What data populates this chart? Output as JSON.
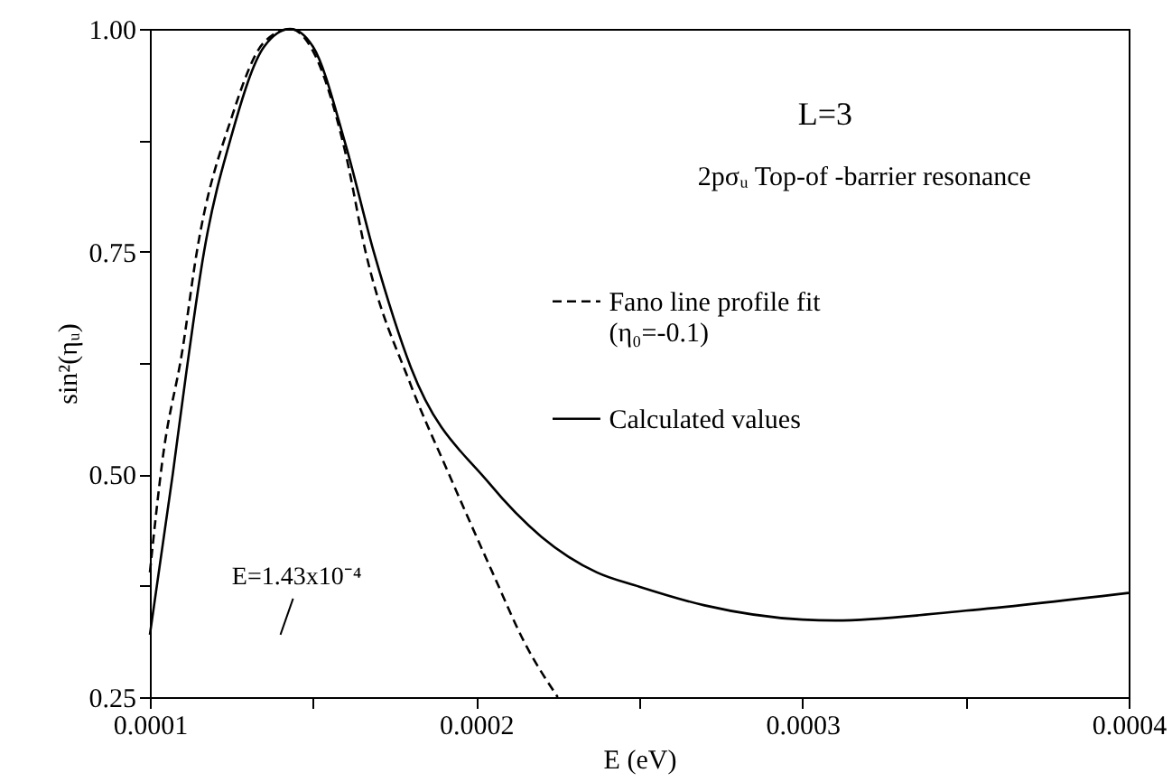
{
  "chart_data": {
    "type": "line",
    "xlabel": "E (eV)",
    "ylabel": "sin²(ηᵤ)",
    "xlim": [
      0.0001,
      0.0004
    ],
    "xticks": [
      0.0001,
      {
        "value": 0.00015,
        "label": null
      },
      0.0002,
      {
        "value": 0.00025,
        "label": null
      },
      0.0003,
      {
        "value": 0.00035,
        "label": null
      },
      0.0004
    ],
    "ylim": [
      0.25,
      1.0
    ],
    "yticks": [
      {
        "value": 0.25,
        "label": "0.25"
      },
      {
        "value": 0.375,
        "label": null
      },
      {
        "value": 0.5,
        "label": "0.50"
      },
      {
        "value": 0.625,
        "label": null
      },
      {
        "value": 0.75,
        "label": "0.75"
      },
      {
        "value": 0.875,
        "label": null
      },
      {
        "value": 1.0,
        "label": "1.00"
      }
    ],
    "grid": false,
    "legend": "right",
    "marker": "none",
    "annotations": [
      "L=3",
      "2pσᵤ  Top-of -barrier resonance",
      "E=1.43x10⁻⁴"
    ],
    "series": [
      {
        "name": "Fano line profile fit (η₀=-0.1)",
        "color": "#000000",
        "line_style": "dashed",
        "x": [
          0.0001,
          0.000104,
          0.00011,
          0.0001144,
          0.000125,
          0.000135,
          0.000143,
          0.00015,
          0.00016,
          0.0001661,
          0.00018,
          0.0001917,
          0.000205,
          0.000215,
          0.000225
        ],
        "values": [
          0.39,
          0.52,
          0.64,
          0.75,
          0.9,
          0.985,
          1.0,
          0.975,
          0.86,
          0.75,
          0.6,
          0.5,
          0.39,
          0.31,
          0.25
        ]
      },
      {
        "name": "Calculated values",
        "color": "#000000",
        "line_style": "solid",
        "x": [
          0.0001,
          0.000107,
          0.000111,
          0.0001166,
          0.000125,
          0.000135,
          0.000143,
          0.00015,
          0.00016,
          0.0001686,
          0.00018,
          0.000204,
          0.00022,
          0.000237,
          0.00025,
          0.00027,
          0.0003,
          0.00031,
          0.00035,
          0.0004
        ],
        "values": [
          0.32,
          0.5,
          0.61,
          0.75,
          0.88,
          0.98,
          1.0,
          0.98,
          0.87,
          0.75,
          0.62,
          0.49,
          0.43,
          0.39,
          0.374,
          0.353,
          0.337,
          0.336,
          0.347,
          0.367
        ]
      }
    ]
  }
}
